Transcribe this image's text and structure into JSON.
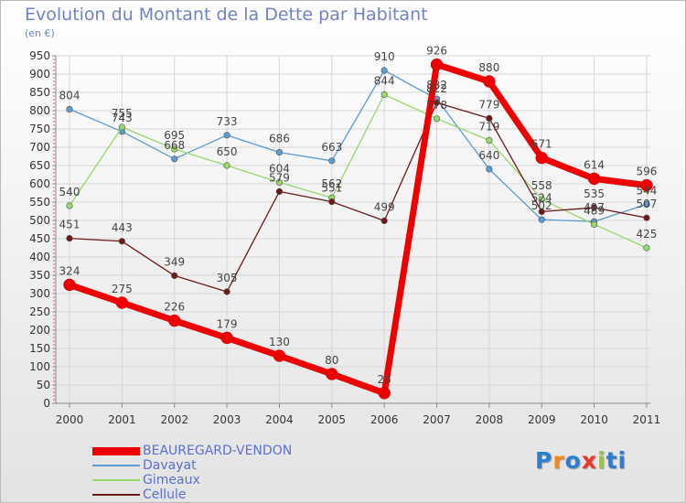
{
  "title": "Evolution du Montant de la Dette par Habitant",
  "unit_label": "(en €)",
  "logo": {
    "letters": [
      "P",
      "r",
      "o",
      "x",
      "i",
      "t",
      "i"
    ],
    "colors": [
      "#2a7fd4",
      "#f28a1a",
      "#2a7fd4",
      "#e83a2a",
      "#9ac53a",
      "#2a7fd4",
      "#2a7fd4"
    ]
  },
  "chart_data": {
    "type": "line",
    "title": "Evolution du Montant de la Dette par Habitant",
    "ylabel": "(en €)",
    "xlabel": "",
    "x": [
      "2000",
      "2001",
      "2002",
      "2003",
      "2004",
      "2005",
      "2006",
      "2007",
      "2008",
      "2009",
      "2010",
      "2011"
    ],
    "ylim": [
      0,
      950
    ],
    "yticks": [
      0,
      50,
      100,
      150,
      200,
      250,
      300,
      350,
      400,
      450,
      500,
      550,
      600,
      650,
      700,
      750,
      800,
      850,
      900,
      950
    ],
    "grid": true,
    "legend_position": "bottom-left",
    "series": [
      {
        "name": "Davayat",
        "color": "#5b9bd0",
        "values": [
          804,
          743,
          668,
          733,
          686,
          663,
          910,
          832,
          640,
          502,
          497,
          544
        ],
        "labels": [
          "804",
          "743",
          "668",
          "733",
          "686",
          "663",
          "910",
          "832",
          "640",
          "502",
          "497",
          "544"
        ]
      },
      {
        "name": "Gimeaux",
        "color": "#96d86a",
        "values": [
          540,
          755,
          695,
          650,
          604,
          562,
          844,
          778,
          719,
          558,
          489,
          425
        ],
        "labels": [
          "540",
          "755",
          "695",
          "650",
          "604",
          "562",
          "844",
          "778",
          "719",
          "558",
          "489",
          "425"
        ]
      },
      {
        "name": "Cellule",
        "color": "#6b1a1a",
        "values": [
          451,
          443,
          349,
          305,
          579,
          551,
          499,
          822,
          779,
          524,
          535,
          507
        ],
        "labels": [
          "451",
          "443",
          "349",
          "305",
          "579",
          "551",
          "499",
          "822",
          "779",
          "524",
          "535",
          "507"
        ]
      },
      {
        "name": "BEAUREGARD-VENDON",
        "color": "#ee0000",
        "values": [
          324,
          275,
          226,
          179,
          130,
          80,
          28,
          926,
          880,
          671,
          614,
          596
        ],
        "labels": [
          "324",
          "275",
          "226",
          "179",
          "130",
          "80",
          "28",
          "926",
          "880",
          "671",
          "614",
          "596"
        ]
      }
    ],
    "legend": [
      "BEAUREGARD-VENDON",
      "Davayat",
      "Gimeaux",
      "Cellule"
    ]
  }
}
